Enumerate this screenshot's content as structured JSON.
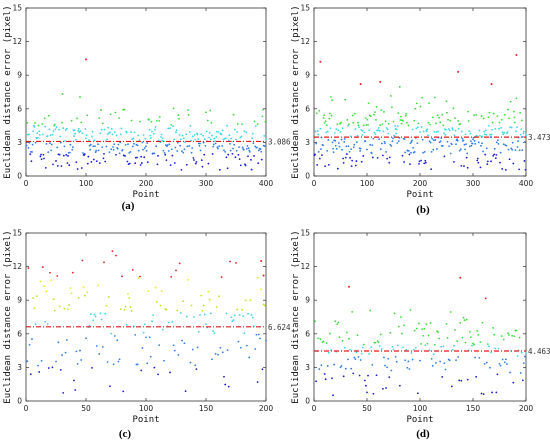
{
  "chart_data": [
    {
      "type": "scatter",
      "panel_label": "(a)",
      "xlabel": "Point",
      "ylabel": "Euclidean distance error (pixel)",
      "xlim": [
        0,
        400
      ],
      "ylim": [
        0,
        15
      ],
      "xticks": [
        "0",
        "100",
        "200",
        "300",
        "400"
      ],
      "yticks": [
        "0",
        "3",
        "6",
        "9",
        "12",
        "15"
      ],
      "mean_line": {
        "value": 3.086,
        "label": "3.086"
      },
      "n_points": 400,
      "seed": 11,
      "outliers": [
        {
          "x": 100,
          "y": 10.4
        }
      ],
      "color_bands": [
        {
          "max": 2.0,
          "color": "#1a1ad8"
        },
        {
          "max": 3.0,
          "color": "#2f7de8"
        },
        {
          "max": 4.5,
          "color": "#39d6e6"
        },
        {
          "max": 8.5,
          "color": "#35e035"
        },
        {
          "max": 10.0,
          "color": "#e8e81a"
        },
        {
          "max": 15.0,
          "color": "#e82020"
        }
      ]
    },
    {
      "type": "scatter",
      "panel_label": "(b)",
      "xlabel": "Point",
      "ylabel": "Euclidean distance error (pixel)",
      "xlim": [
        0,
        400
      ],
      "ylim": [
        0,
        15
      ],
      "xticks": [
        "0",
        "100",
        "200",
        "300",
        "400"
      ],
      "yticks": [
        "0",
        "3",
        "6",
        "9",
        "12",
        "15"
      ],
      "mean_line": {
        "value": 3.473,
        "label": "3.473"
      },
      "n_points": 400,
      "seed": 23,
      "outliers": [
        {
          "x": 12,
          "y": 10.2
        },
        {
          "x": 88,
          "y": 8.2
        },
        {
          "x": 125,
          "y": 8.4
        },
        {
          "x": 272,
          "y": 9.3
        },
        {
          "x": 335,
          "y": 8.2
        },
        {
          "x": 382,
          "y": 10.8
        }
      ],
      "color_bands": [
        {
          "max": 2.0,
          "color": "#1a1ad8"
        },
        {
          "max": 3.5,
          "color": "#2f7de8"
        },
        {
          "max": 4.5,
          "color": "#39d6e6"
        },
        {
          "max": 8.0,
          "color": "#35e035"
        },
        {
          "max": 15.0,
          "color": "#e82020"
        }
      ]
    },
    {
      "type": "scatter",
      "panel_label": "(c)",
      "xlabel": "Point",
      "ylabel": "Euclidean distance error (pixel)",
      "xlim": [
        0,
        200
      ],
      "ylim": [
        0,
        15
      ],
      "xticks": [
        "0",
        "50",
        "100",
        "150",
        "200"
      ],
      "yticks": [
        "0",
        "3",
        "6",
        "9",
        "12",
        "15"
      ],
      "mean_line": {
        "value": 6.624,
        "label": "6.624"
      },
      "n_points": 200,
      "seed": 37,
      "outliers": [
        {
          "x": 196,
          "y": 12.5
        },
        {
          "x": 198,
          "y": 11.2
        },
        {
          "x": 193,
          "y": 11.0
        }
      ],
      "color_bands": [
        {
          "max": 3.0,
          "color": "#1a1ad8"
        },
        {
          "max": 6.0,
          "color": "#2f7de8"
        },
        {
          "max": 8.0,
          "color": "#39d6e6"
        },
        {
          "max": 9.5,
          "color": "#b8e81a"
        },
        {
          "max": 11.0,
          "color": "#e8e81a"
        },
        {
          "max": 15.0,
          "color": "#e82020"
        }
      ]
    },
    {
      "type": "scatter",
      "panel_label": "(d)",
      "xlabel": "Point",
      "ylabel": "Euclidean distance error (pixel)",
      "xlim": [
        0,
        200
      ],
      "ylim": [
        0,
        15
      ],
      "xticks": [
        "0",
        "50",
        "100",
        "150",
        "200"
      ],
      "yticks": [
        "0",
        "3",
        "6",
        "9",
        "12",
        "15"
      ],
      "mean_line": {
        "value": 4.463,
        "label": "4.463"
      },
      "n_points": 200,
      "seed": 53,
      "outliers": [
        {
          "x": 33,
          "y": 10.2
        },
        {
          "x": 138,
          "y": 11.0
        }
      ],
      "color_bands": [
        {
          "max": 2.5,
          "color": "#1a1ad8"
        },
        {
          "max": 4.0,
          "color": "#2f7de8"
        },
        {
          "max": 5.0,
          "color": "#39d6e6"
        },
        {
          "max": 8.5,
          "color": "#35e035"
        },
        {
          "max": 15.0,
          "color": "#e82020"
        }
      ]
    }
  ]
}
